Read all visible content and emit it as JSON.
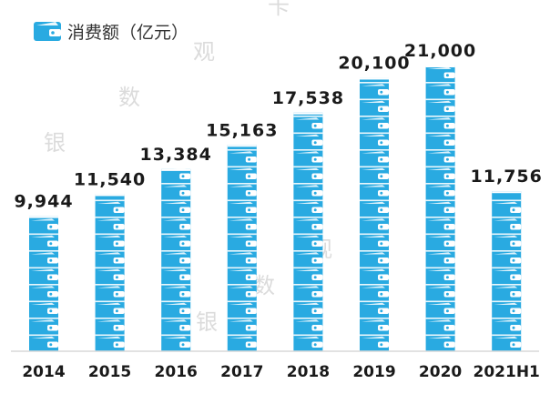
{
  "chart_data": {
    "type": "bar",
    "categories": [
      "2014",
      "2015",
      "2016",
      "2017",
      "2018",
      "2019",
      "2020",
      "2021H1"
    ],
    "values": [
      9944,
      11540,
      13384,
      15163,
      17538,
      20100,
      21000,
      11756
    ],
    "value_labels": [
      "9,944",
      "11,540",
      "13,384",
      "15,163",
      "17,538",
      "20,100",
      "21,000",
      "11,756"
    ],
    "legend": "消费额（亿元）",
    "ylim": [
      0,
      21000
    ],
    "grid": false,
    "bar_color": "#29aae1",
    "bar_style": "stacked-wallet-icons"
  },
  "watermark": {
    "text": [
      "银",
      "数",
      "观",
      "卡"
    ],
    "color": "#bfbfbf"
  },
  "colors": {
    "bar": "#29aae1",
    "bar_dark": "#1f8fc2",
    "axis": "#d9d9d9",
    "text": "#1a1a1a"
  }
}
